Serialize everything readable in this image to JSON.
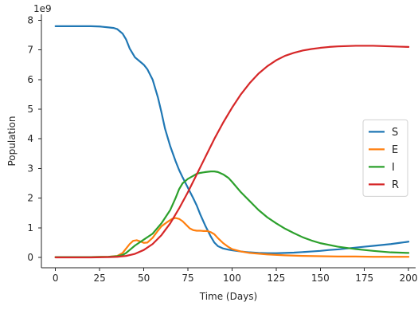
{
  "chart_data": {
    "type": "line",
    "xlabel": "Time (Days)",
    "ylabel": "Population",
    "y_multiplier_label": "1e9",
    "xlim": [
      -8,
      204
    ],
    "ylim": [
      -0.35,
      8.2
    ],
    "xticks": [
      0,
      25,
      50,
      75,
      100,
      125,
      150,
      175,
      200
    ],
    "yticks": [
      0,
      1,
      2,
      3,
      4,
      5,
      6,
      7,
      8
    ],
    "grid": false,
    "legend_position": "center-right",
    "series": [
      {
        "name": "S",
        "color": "#1f77b4",
        "x": [
          0,
          10,
          20,
          25,
          30,
          33,
          35,
          38,
          40,
          42,
          45,
          48,
          50,
          52,
          55,
          58,
          60,
          62,
          65,
          68,
          70,
          72,
          75,
          78,
          80,
          82,
          85,
          88,
          90,
          92,
          95,
          98,
          100,
          105,
          110,
          115,
          120,
          125,
          130,
          135,
          140,
          145,
          150,
          155,
          160,
          165,
          170,
          175,
          180,
          185,
          190,
          195,
          200
        ],
        "y": [
          7.8,
          7.8,
          7.8,
          7.79,
          7.76,
          7.74,
          7.7,
          7.55,
          7.35,
          7.05,
          6.75,
          6.6,
          6.5,
          6.35,
          6.0,
          5.4,
          4.9,
          4.35,
          3.75,
          3.25,
          2.95,
          2.7,
          2.35,
          2.0,
          1.75,
          1.45,
          1.05,
          0.7,
          0.5,
          0.38,
          0.3,
          0.26,
          0.24,
          0.2,
          0.17,
          0.15,
          0.14,
          0.14,
          0.15,
          0.16,
          0.18,
          0.2,
          0.22,
          0.25,
          0.27,
          0.3,
          0.33,
          0.36,
          0.39,
          0.42,
          0.45,
          0.49,
          0.53
        ]
      },
      {
        "name": "E",
        "color": "#ff7f0e",
        "x": [
          0,
          20,
          30,
          35,
          38,
          40,
          42,
          44,
          46,
          48,
          50,
          52,
          55,
          58,
          60,
          63,
          66,
          68,
          70,
          72,
          74,
          76,
          78,
          80,
          82,
          84,
          86,
          88,
          90,
          92,
          95,
          98,
          100,
          105,
          110,
          120,
          130,
          140,
          150,
          160,
          170,
          180,
          190,
          200
        ],
        "y": [
          0.01,
          0.01,
          0.02,
          0.05,
          0.15,
          0.3,
          0.45,
          0.56,
          0.58,
          0.54,
          0.49,
          0.5,
          0.66,
          0.9,
          1.05,
          1.18,
          1.3,
          1.33,
          1.3,
          1.22,
          1.1,
          0.98,
          0.92,
          0.9,
          0.9,
          0.89,
          0.89,
          0.85,
          0.78,
          0.65,
          0.48,
          0.35,
          0.28,
          0.2,
          0.15,
          0.1,
          0.07,
          0.05,
          0.04,
          0.03,
          0.03,
          0.02,
          0.02,
          0.02
        ]
      },
      {
        "name": "I",
        "color": "#2ca02c",
        "x": [
          0,
          20,
          30,
          35,
          38,
          40,
          42,
          45,
          48,
          50,
          55,
          60,
          65,
          68,
          70,
          72,
          75,
          78,
          80,
          82,
          85,
          88,
          90,
          92,
          95,
          98,
          100,
          105,
          110,
          115,
          120,
          125,
          130,
          135,
          140,
          145,
          150,
          160,
          170,
          180,
          190,
          200
        ],
        "y": [
          0.01,
          0.01,
          0.02,
          0.04,
          0.08,
          0.15,
          0.25,
          0.4,
          0.52,
          0.6,
          0.8,
          1.15,
          1.6,
          2.0,
          2.3,
          2.5,
          2.65,
          2.75,
          2.82,
          2.85,
          2.88,
          2.9,
          2.9,
          2.88,
          2.8,
          2.68,
          2.55,
          2.2,
          1.9,
          1.6,
          1.35,
          1.15,
          0.97,
          0.82,
          0.68,
          0.57,
          0.48,
          0.36,
          0.28,
          0.22,
          0.17,
          0.15
        ]
      },
      {
        "name": "R",
        "color": "#d62728",
        "x": [
          0,
          20,
          30,
          35,
          40,
          45,
          50,
          55,
          60,
          65,
          70,
          75,
          80,
          85,
          90,
          95,
          100,
          105,
          110,
          115,
          120,
          125,
          130,
          135,
          140,
          145,
          150,
          155,
          160,
          165,
          170,
          175,
          180,
          185,
          190,
          195,
          200
        ],
        "y": [
          0.0,
          0.0,
          0.01,
          0.02,
          0.05,
          0.12,
          0.25,
          0.45,
          0.75,
          1.15,
          1.65,
          2.2,
          2.8,
          3.4,
          4.0,
          4.55,
          5.05,
          5.5,
          5.88,
          6.2,
          6.45,
          6.65,
          6.8,
          6.9,
          6.98,
          7.03,
          7.07,
          7.1,
          7.12,
          7.13,
          7.14,
          7.14,
          7.14,
          7.13,
          7.12,
          7.11,
          7.1
        ]
      }
    ]
  }
}
